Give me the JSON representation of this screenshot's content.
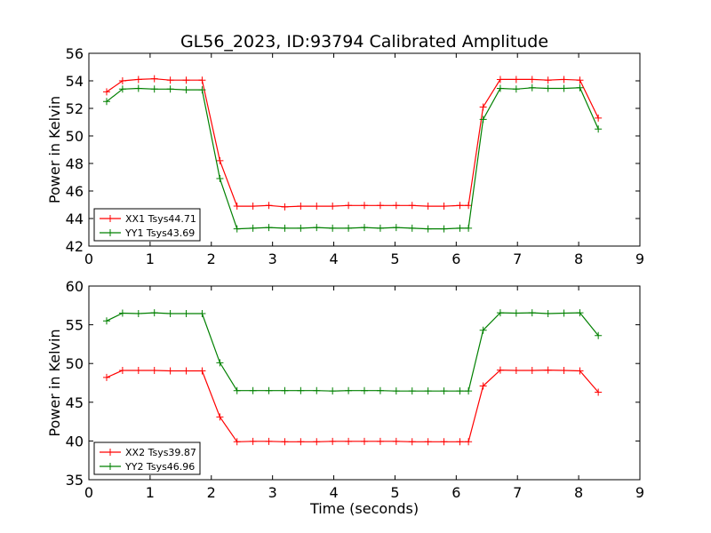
{
  "title": "GL56_2023, ID:93794 Calibrated Amplitude",
  "chart_data": [
    {
      "type": "line",
      "ylabel": "Power in Kelvin",
      "xlabel": "",
      "xlim": [
        0,
        9
      ],
      "ylim": [
        42,
        56
      ],
      "xticks": [
        "0",
        "1",
        "2",
        "3",
        "4",
        "5",
        "6",
        "7",
        "8",
        "9"
      ],
      "yticks": [
        "42",
        "44",
        "46",
        "48",
        "50",
        "52",
        "54",
        "56"
      ],
      "legend_position": "lower-left",
      "x": [
        0.29,
        0.55,
        0.81,
        1.07,
        1.33,
        1.59,
        1.85,
        2.14,
        2.42,
        2.68,
        2.94,
        3.2,
        3.46,
        3.72,
        3.98,
        4.24,
        4.5,
        4.76,
        5.02,
        5.28,
        5.54,
        5.8,
        6.06,
        6.2,
        6.44,
        6.72,
        6.98,
        7.24,
        7.5,
        7.76,
        8.02,
        8.32
      ],
      "series": [
        {
          "name": "XX1 Tsys44.71",
          "color": "#ff0000",
          "values": [
            53.2,
            54.0,
            54.1,
            54.15,
            54.05,
            54.05,
            54.05,
            48.2,
            44.9,
            44.9,
            44.95,
            44.85,
            44.9,
            44.9,
            44.9,
            44.95,
            44.95,
            44.95,
            44.95,
            44.95,
            44.9,
            44.9,
            44.95,
            44.95,
            52.1,
            54.1,
            54.1,
            54.1,
            54.05,
            54.1,
            54.05,
            51.3
          ]
        },
        {
          "name": "YY1 Tsys43.69",
          "color": "#008000",
          "values": [
            52.5,
            53.4,
            53.45,
            53.4,
            53.4,
            53.35,
            53.35,
            46.9,
            43.25,
            43.3,
            43.35,
            43.3,
            43.3,
            43.35,
            43.3,
            43.3,
            43.35,
            43.3,
            43.35,
            43.3,
            43.25,
            43.25,
            43.3,
            43.3,
            51.2,
            53.45,
            53.4,
            53.5,
            53.45,
            53.45,
            53.5,
            50.5
          ]
        }
      ]
    },
    {
      "type": "line",
      "ylabel": "Power in Kelvin",
      "xlabel": "Time (seconds)",
      "xlim": [
        0,
        9
      ],
      "ylim": [
        35,
        60
      ],
      "xticks": [
        "0",
        "1",
        "2",
        "3",
        "4",
        "5",
        "6",
        "7",
        "8",
        "9"
      ],
      "yticks": [
        "35",
        "40",
        "45",
        "50",
        "55",
        "60"
      ],
      "legend_position": "lower-left",
      "x": [
        0.29,
        0.55,
        0.81,
        1.07,
        1.33,
        1.59,
        1.85,
        2.14,
        2.42,
        2.68,
        2.94,
        3.2,
        3.46,
        3.72,
        3.98,
        4.24,
        4.5,
        4.76,
        5.02,
        5.28,
        5.54,
        5.8,
        6.06,
        6.2,
        6.44,
        6.72,
        6.98,
        7.24,
        7.5,
        7.76,
        8.02,
        8.32
      ],
      "series": [
        {
          "name": "XX2 Tsys39.87",
          "color": "#ff0000",
          "values": [
            48.2,
            49.1,
            49.1,
            49.1,
            49.05,
            49.05,
            49.05,
            43.1,
            39.9,
            39.95,
            39.95,
            39.9,
            39.9,
            39.9,
            39.95,
            39.95,
            39.95,
            39.95,
            39.95,
            39.9,
            39.9,
            39.9,
            39.9,
            39.9,
            47.1,
            49.15,
            49.1,
            49.1,
            49.15,
            49.1,
            49.05,
            46.3
          ]
        },
        {
          "name": "YY2 Tsys46.96",
          "color": "#008000",
          "values": [
            55.5,
            56.5,
            56.45,
            56.55,
            56.45,
            56.45,
            56.45,
            50.1,
            46.5,
            46.5,
            46.5,
            46.5,
            46.5,
            46.5,
            46.45,
            46.5,
            46.5,
            46.5,
            46.45,
            46.45,
            46.45,
            46.45,
            46.45,
            46.45,
            54.3,
            56.55,
            56.5,
            56.55,
            56.45,
            56.5,
            56.55,
            53.6
          ]
        }
      ]
    }
  ]
}
